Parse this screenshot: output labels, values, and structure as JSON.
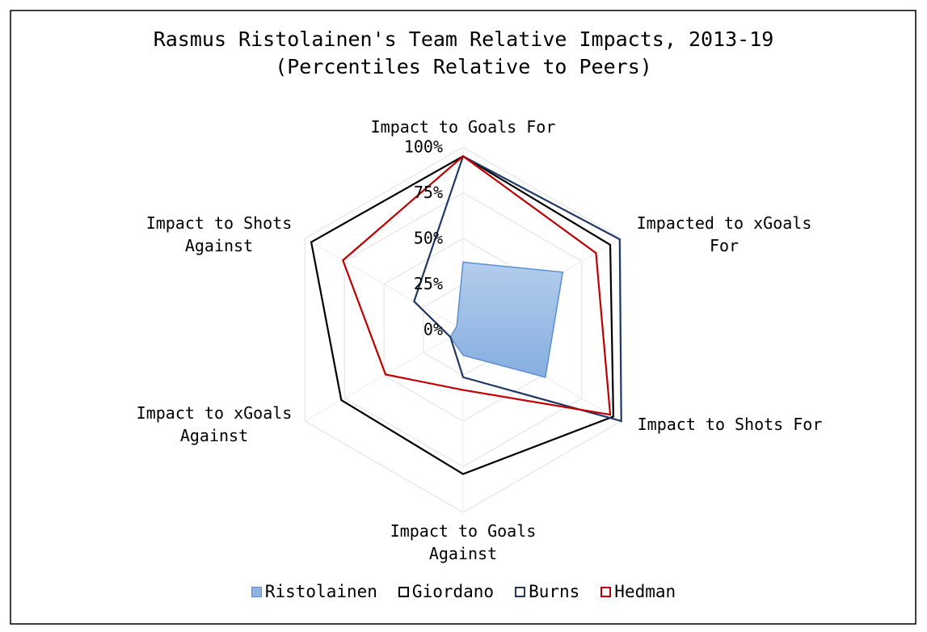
{
  "chart_data": {
    "type": "radar",
    "title": "Rasmus Ristolainen's Team Relative Impacts, 2013-19",
    "subtitle": "(Percentiles Relative to Peers)",
    "categories": [
      "Impact to Goals For",
      "Impacted to xGoals\nFor",
      "Impact to Shots For",
      "Impact to Goals\nAgainst",
      "Impact to xGoals\nAgainst",
      "Impact to Shots\nAgainst"
    ],
    "ylim": [
      0,
      100
    ],
    "yticks": [
      {
        "value": 0,
        "label": "0%"
      },
      {
        "value": 25,
        "label": "25%"
      },
      {
        "value": 50,
        "label": "50%"
      },
      {
        "value": 75,
        "label": "75%"
      },
      {
        "value": 100,
        "label": "100%"
      }
    ],
    "grid": true,
    "legend": "bottom",
    "series": [
      {
        "name": "Ristolainen",
        "color": "#8db3e2",
        "filled": true,
        "values": [
          37,
          63,
          52,
          14,
          8,
          4
        ]
      },
      {
        "name": "Giordano",
        "color": "#000000",
        "filled": false,
        "values": [
          95,
          93,
          95,
          79,
          77,
          96
        ]
      },
      {
        "name": "Burns",
        "color": "#1f3864",
        "filled": false,
        "values": [
          95,
          99,
          100,
          26,
          8,
          31
        ]
      },
      {
        "name": "Hedman",
        "color": "#c00000",
        "filled": false,
        "values": [
          95,
          84,
          93,
          33,
          49,
          76
        ]
      }
    ]
  }
}
